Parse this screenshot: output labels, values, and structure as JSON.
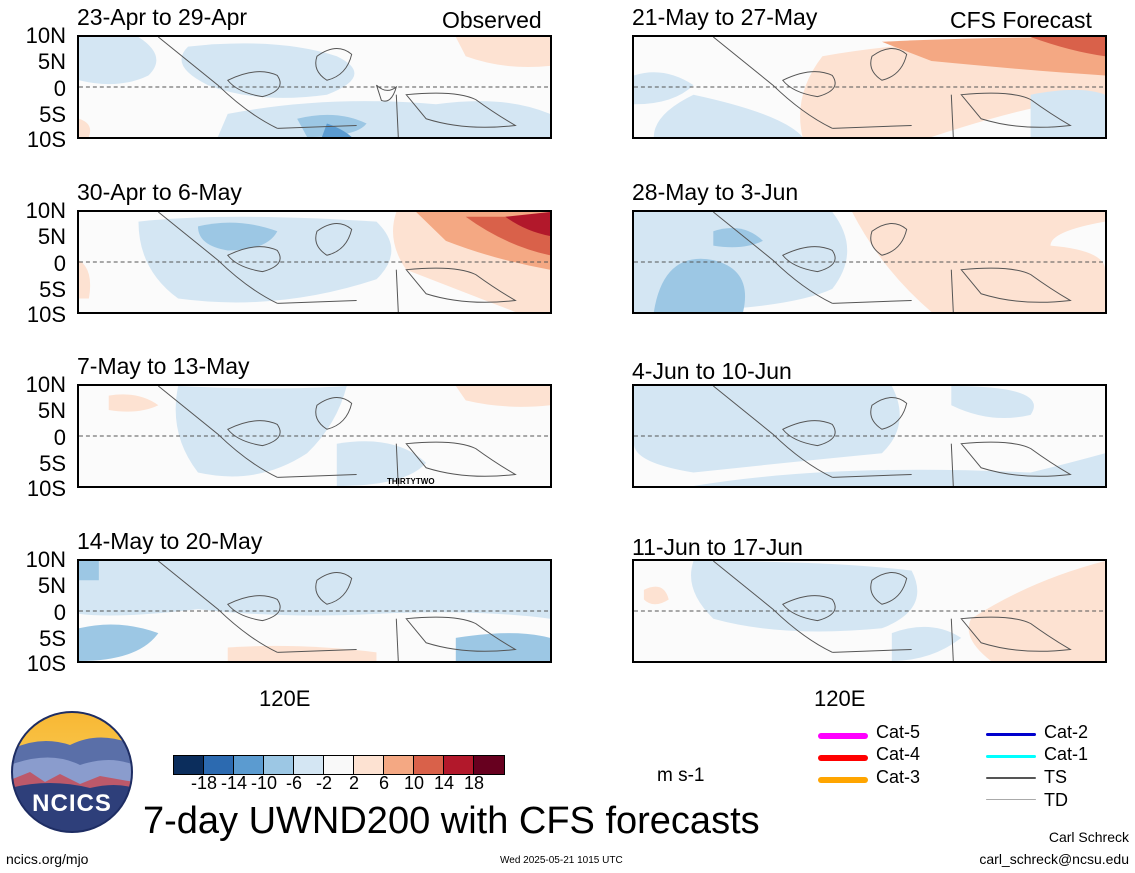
{
  "panels": [
    {
      "title": "23-Apr to 29-Apr",
      "tag": "Observed"
    },
    {
      "title": "30-Apr to 6-May",
      "tag": ""
    },
    {
      "title": "7-May to 13-May",
      "tag": ""
    },
    {
      "title": "14-May to 20-May",
      "tag": ""
    },
    {
      "title": "21-May to 27-May",
      "tag": "CFS Forecast"
    },
    {
      "title": "28-May to 3-Jun",
      "tag": ""
    },
    {
      "title": "4-Jun to 10-Jun",
      "tag": ""
    },
    {
      "title": "11-Jun to 17-Jun",
      "tag": ""
    }
  ],
  "lat_labels": [
    "10N",
    "5N",
    "0",
    "5S",
    "10S"
  ],
  "lon_label": "120E",
  "storm_label": "THIRTYTWO",
  "colorbar": {
    "colors": [
      "#0b2d5c",
      "#2c6ab0",
      "#5b9bd0",
      "#9cc7e4",
      "#d4e6f3",
      "#f9f9f9",
      "#fde2d2",
      "#f4a883",
      "#d9614a",
      "#b2182b",
      "#67001f"
    ],
    "labels": [
      "-18",
      "-14",
      "-10",
      "-6",
      "-2",
      "2",
      "6",
      "10",
      "14",
      "18"
    ],
    "units": "m s-1"
  },
  "legend": [
    {
      "label": "Cat-5",
      "color": "#ff00ff"
    },
    {
      "label": "Cat-4",
      "color": "#ff0000"
    },
    {
      "label": "Cat-3",
      "color": "#ffa500"
    },
    {
      "label": "Cat-2",
      "color": "#0000cd"
    },
    {
      "label": "Cat-1",
      "color": "#00ffff"
    },
    {
      "label": "TS",
      "color": "#555555"
    },
    {
      "label": "TD",
      "color": "#aaaaaa"
    }
  ],
  "logo_text": "NCICS",
  "main_title": "7-day UWND200 with CFS forecasts",
  "url": "ncics.org/mjo",
  "timestamp": "Wed 2025-05-21 1015 UTC",
  "author": "Carl Schreck",
  "email": "carl_schreck@ncsu.edu"
}
